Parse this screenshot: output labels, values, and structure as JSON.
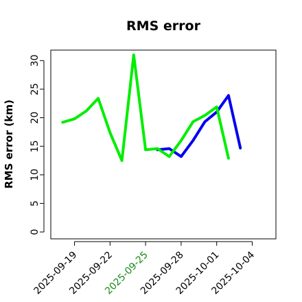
{
  "chart_data": {
    "type": "line",
    "title": "RMS error",
    "xlabel": "",
    "ylabel": "RMS error (km)",
    "ylim": [
      0,
      31
    ],
    "yticks": [
      0,
      5,
      10,
      15,
      20,
      25,
      30
    ],
    "xlim": [
      "2025-09-17",
      "2025-10-06"
    ],
    "xticks": [
      {
        "label": "2025-09-19",
        "date": "2025-09-19",
        "color": "#000000"
      },
      {
        "label": "2025-09-22",
        "date": "2025-09-22",
        "color": "#000000"
      },
      {
        "label": "2025-09-25",
        "date": "2025-09-25",
        "color": "#1a8a1a"
      },
      {
        "label": "2025-09-28",
        "date": "2025-09-28",
        "color": "#000000"
      },
      {
        "label": "2025-10-01",
        "date": "2025-10-01",
        "color": "#000000"
      },
      {
        "label": "2025-10-04",
        "date": "2025-10-04",
        "color": "#000000"
      }
    ],
    "grid": false,
    "series": [
      {
        "color": "#0000ee",
        "points": [
          {
            "x": "2025-09-26",
            "y": 14.4
          },
          {
            "x": "2025-09-27",
            "y": 14.6
          },
          {
            "x": "2025-09-28",
            "y": 13.2
          },
          {
            "x": "2025-09-29",
            "y": 16.0
          },
          {
            "x": "2025-09-30",
            "y": 19.3
          },
          {
            "x": "2025-10-01",
            "y": 21.0
          },
          {
            "x": "2025-10-02",
            "y": 23.9
          },
          {
            "x": "2025-10-03",
            "y": 14.7
          }
        ]
      },
      {
        "color": "#00ee00",
        "points": [
          {
            "x": "2025-09-18",
            "y": 19.2
          },
          {
            "x": "2025-09-19",
            "y": 19.8
          },
          {
            "x": "2025-09-20",
            "y": 21.2
          },
          {
            "x": "2025-09-21",
            "y": 23.4
          },
          {
            "x": "2025-09-22",
            "y": 17.4
          },
          {
            "x": "2025-09-23",
            "y": 12.5
          },
          {
            "x": "2025-09-24",
            "y": 31.0
          },
          {
            "x": "2025-09-25",
            "y": 14.4
          },
          {
            "x": "2025-09-26",
            "y": 14.6
          },
          {
            "x": "2025-09-27",
            "y": 13.2
          },
          {
            "x": "2025-09-28",
            "y": 16.0
          },
          {
            "x": "2025-09-29",
            "y": 19.3
          },
          {
            "x": "2025-09-30",
            "y": 20.4
          },
          {
            "x": "2025-10-01",
            "y": 21.9
          },
          {
            "x": "2025-10-02",
            "y": 12.9
          }
        ]
      }
    ]
  }
}
